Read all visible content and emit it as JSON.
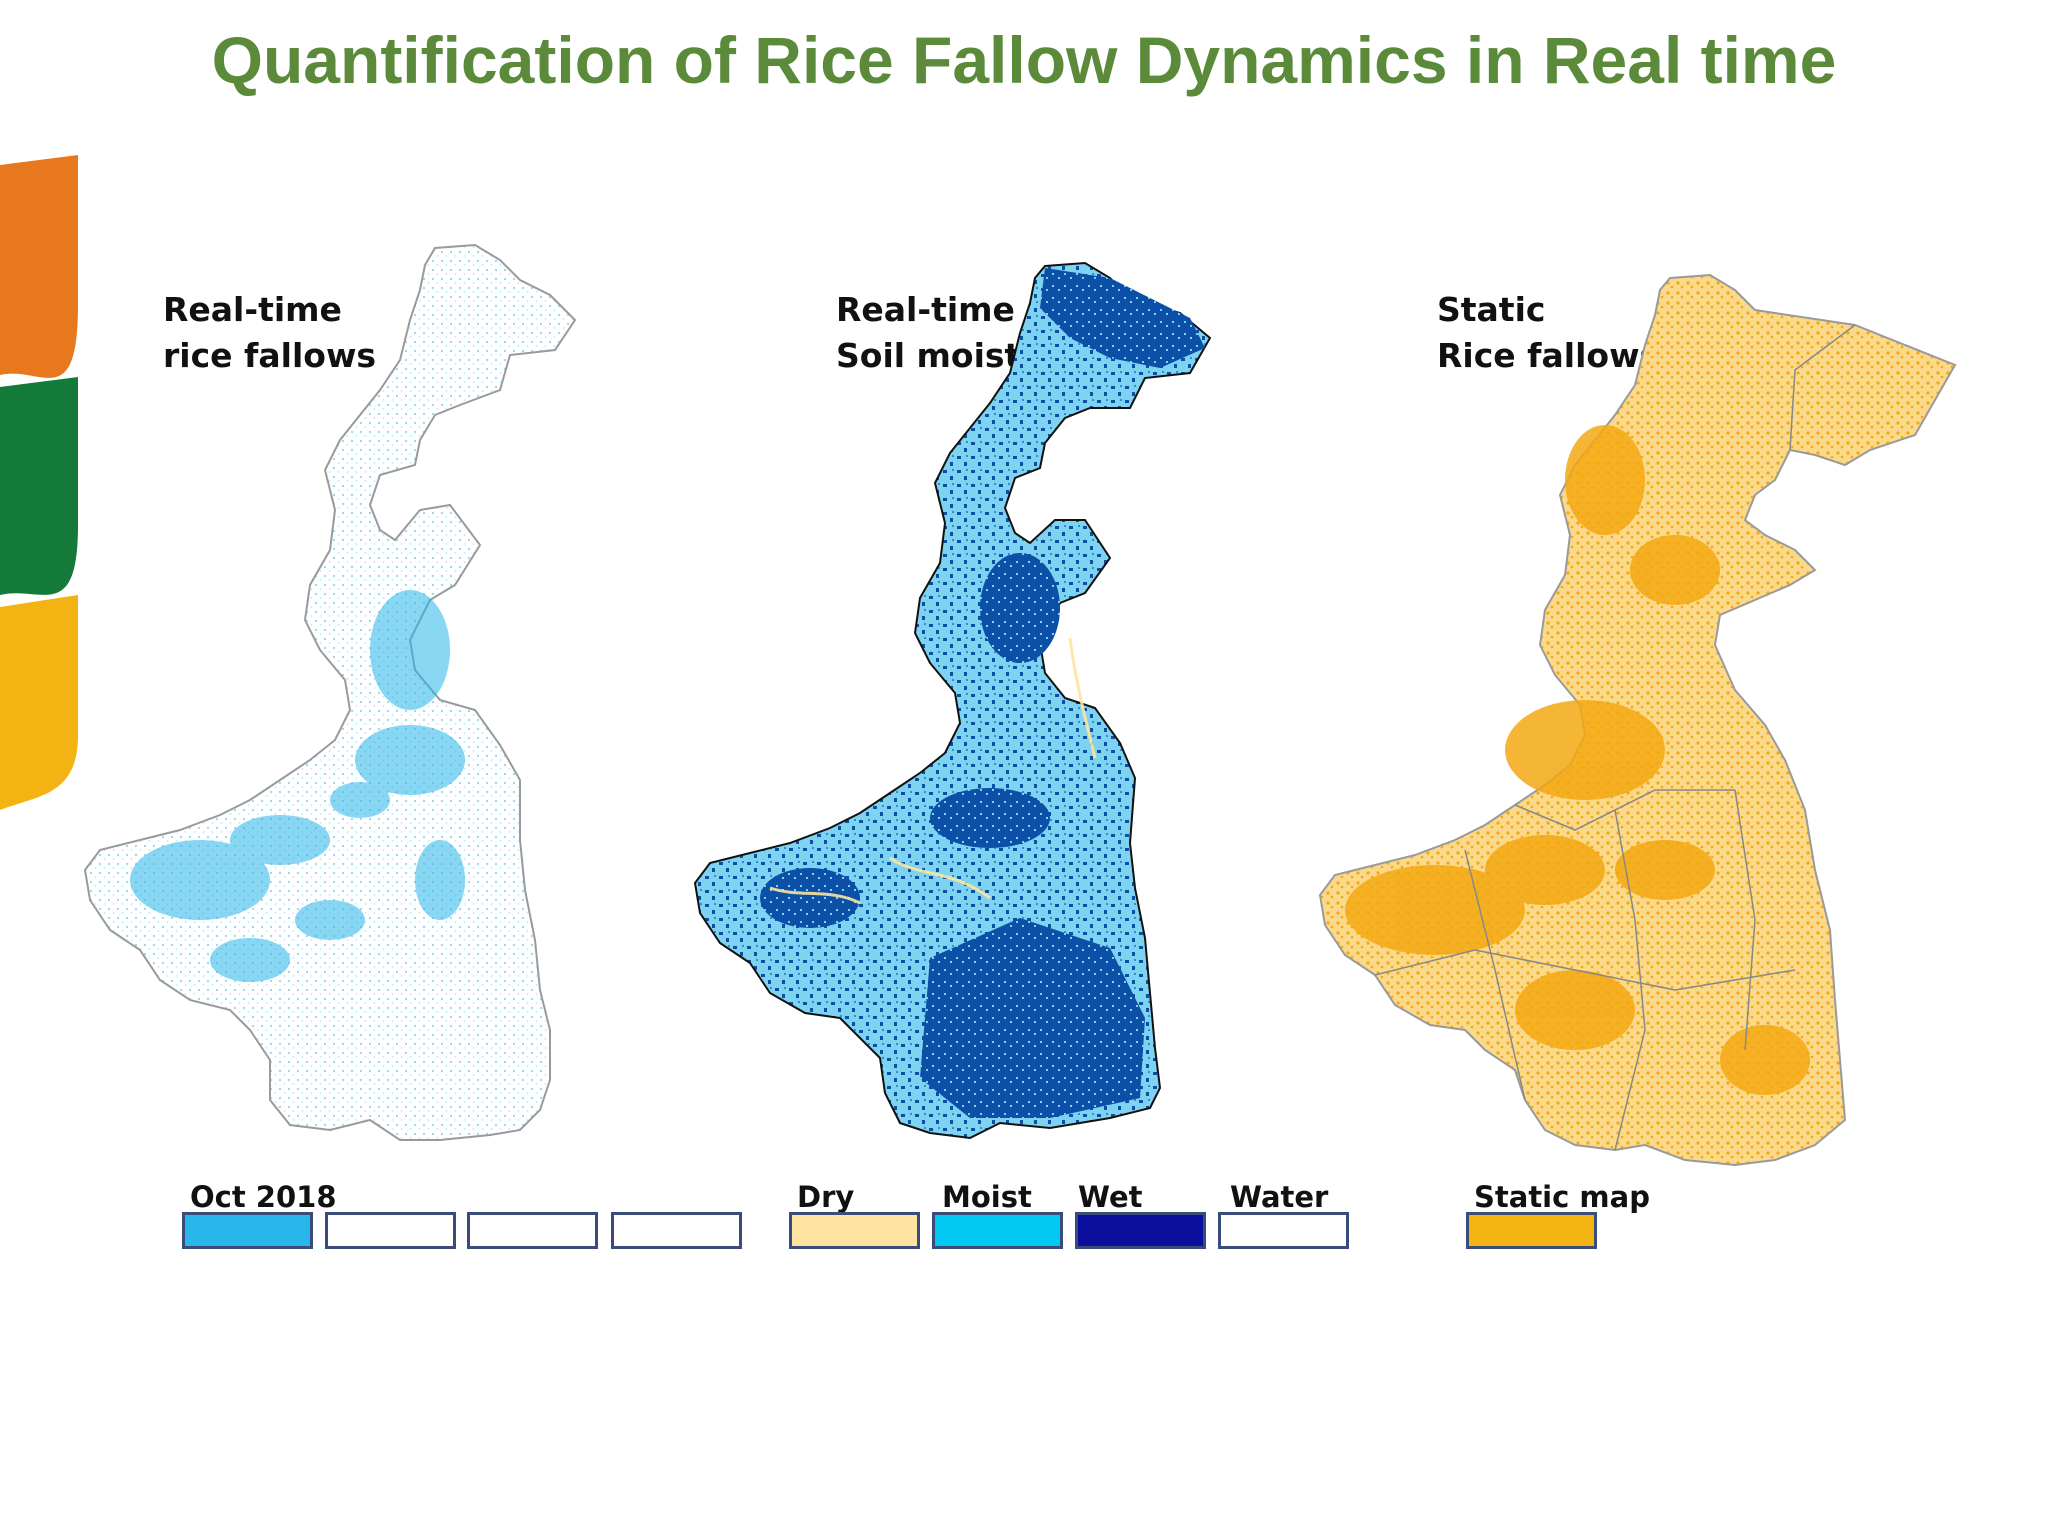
{
  "title": "Quantification of Rice Fallow Dynamics in Real time",
  "colors": {
    "title": "#5b8a3a",
    "deco_orange": "#e8781e",
    "deco_green": "#137a3a",
    "deco_yellow": "#f3b312",
    "map_outline": "#9a9a9a",
    "fallow_blue": "#29b6ea",
    "soil_dry": "#fde4a0",
    "soil_moist": "#00c8f2",
    "soil_wet": "#0a0f9e",
    "soil_map_dark": "#0b4fa6",
    "soil_map_light": "#7dd3f0",
    "static_orange": "#f3a812",
    "water": "#ffffff"
  },
  "panels": [
    {
      "label_line1": "Real-time",
      "label_line2": "rice fallows"
    },
    {
      "label_line1": "Real-time",
      "label_line2": "Soil moisture"
    },
    {
      "label_line1": "Static",
      "label_line2": "Rice fallows"
    }
  ],
  "legend": {
    "fallows": {
      "label": "Oct 2018"
    },
    "soil": {
      "dry": "Dry",
      "moist": "Moist",
      "wet": "Wet",
      "water": "Water"
    },
    "static": {
      "label": "Static map"
    }
  }
}
